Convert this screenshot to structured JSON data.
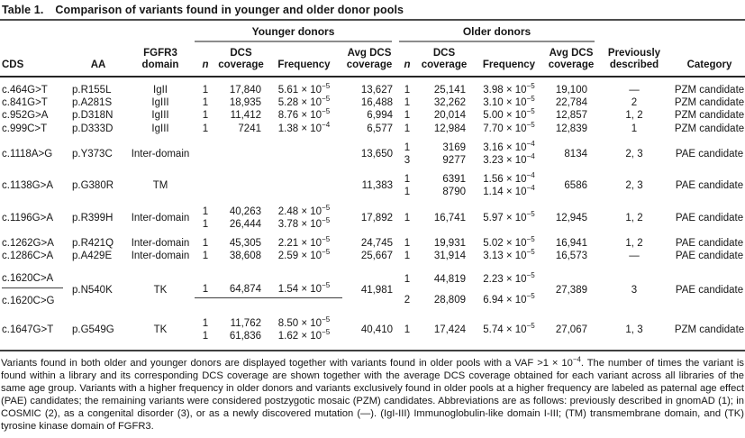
{
  "title": {
    "label": "Table 1.",
    "text": "Comparison of variants found in younger and older donor pools"
  },
  "headers": {
    "younger": "Younger donors",
    "older": "Older donors",
    "cds": "CDS",
    "aa": "AA",
    "domain": "FGFR3 domain",
    "n": "n",
    "dcs": "DCS coverage",
    "freq": "Frequency",
    "avg": "Avg DCS coverage",
    "prev": "Previously described",
    "cat": "Category"
  },
  "table": {
    "rows": [
      {
        "cds": [
          "c.464G>T"
        ],
        "aa": "p.R155L",
        "domain": "IgII",
        "y": {
          "lines": [
            [
              "1",
              "17,840",
              "5.61",
              "−5"
            ]
          ],
          "avg": "13,627"
        },
        "o": {
          "lines": [
            [
              "1",
              "25,141",
              "3.98",
              "−5"
            ]
          ],
          "avg": "19,100"
        },
        "prev": "—",
        "cat": "PZM candidate",
        "gap": false,
        "tall": false
      },
      {
        "cds": [
          "c.841G>T"
        ],
        "aa": "p.A281S",
        "domain": "IgIII",
        "y": {
          "lines": [
            [
              "1",
              "18,935",
              "5.28",
              "−5"
            ]
          ],
          "avg": "16,488"
        },
        "o": {
          "lines": [
            [
              "1",
              "32,262",
              "3.10",
              "−5"
            ]
          ],
          "avg": "22,784"
        },
        "prev": "2",
        "cat": "PZM candidate",
        "gap": false,
        "tall": false
      },
      {
        "cds": [
          "c.952G>A"
        ],
        "aa": "p.D318N",
        "domain": "IgIII",
        "y": {
          "lines": [
            [
              "1",
              "11,412",
              "8.76",
              "−5"
            ]
          ],
          "avg": "6,994"
        },
        "o": {
          "lines": [
            [
              "1",
              "20,014",
              "5.00",
              "−5"
            ]
          ],
          "avg": "12,857"
        },
        "prev": "1, 2",
        "cat": "PZM candidate",
        "gap": false,
        "tall": false
      },
      {
        "cds": [
          "c.999C>T"
        ],
        "aa": "p.D333D",
        "domain": "IgIII",
        "y": {
          "lines": [
            [
              "1",
              "7241",
              "1.38",
              "−4"
            ]
          ],
          "avg": "6,577"
        },
        "o": {
          "lines": [
            [
              "1",
              "12,984",
              "7.70",
              "−5"
            ]
          ],
          "avg": "12,839"
        },
        "prev": "1",
        "cat": "PZM candidate",
        "gap": false,
        "tall": false
      },
      {
        "cds": [
          "c.1118A>G"
        ],
        "aa": "p.Y373C",
        "domain": "Inter-domain",
        "y": {
          "lines": [],
          "avg": "13,650"
        },
        "o": {
          "lines": [
            [
              "1",
              "3169",
              "3.16",
              "−4"
            ],
            [
              "3",
              "9277",
              "3.23",
              "−4"
            ]
          ],
          "avg": "8134"
        },
        "prev": "2, 3",
        "cat": "PAE candidate",
        "gap": true,
        "tall": false
      },
      {
        "cds": [
          "c.1138G>A"
        ],
        "aa": "p.G380R",
        "domain": "TM",
        "y": {
          "lines": [],
          "avg": "11,383"
        },
        "o": {
          "lines": [
            [
              "1",
              "6391",
              "1.56",
              "−4"
            ],
            [
              "1",
              "8790",
              "1.14",
              "−4"
            ]
          ],
          "avg": "6586"
        },
        "prev": "2, 3",
        "cat": "PAE candidate",
        "gap": true,
        "tall": false
      },
      {
        "cds": [
          "c.1196G>A"
        ],
        "aa": "p.R399H",
        "domain": "Inter-domain",
        "y": {
          "lines": [
            [
              "1",
              "40,263",
              "2.48",
              "−5"
            ],
            [
              "1",
              "26,444",
              "3.78",
              "−5"
            ]
          ],
          "avg": "17,892"
        },
        "o": {
          "lines": [
            [
              "1",
              "16,741",
              "5.97",
              "−5"
            ]
          ],
          "avg": "12,945"
        },
        "prev": "1, 2",
        "cat": "PAE candidate",
        "gap": true,
        "tall": false
      },
      {
        "cds": [
          "c.1262G>A"
        ],
        "aa": "p.R421Q",
        "domain": "Inter-domain",
        "y": {
          "lines": [
            [
              "1",
              "45,305",
              "2.21",
              "−5"
            ]
          ],
          "avg": "24,745"
        },
        "o": {
          "lines": [
            [
              "1",
              "19,931",
              "5.02",
              "−5"
            ]
          ],
          "avg": "16,941"
        },
        "prev": "1, 2",
        "cat": "PAE candidate",
        "gap": true,
        "tall": false
      },
      {
        "cds": [
          "c.1286C>A"
        ],
        "aa": "p.A429E",
        "domain": "Inter-domain",
        "y": {
          "lines": [
            [
              "1",
              "38,608",
              "2.59",
              "−5"
            ]
          ],
          "avg": "25,667"
        },
        "o": {
          "lines": [
            [
              "1",
              "31,914",
              "3.13",
              "−5"
            ]
          ],
          "avg": "16,573"
        },
        "prev": "—",
        "cat": "PAE candidate",
        "gap": false,
        "tall": false
      },
      {
        "cds": [
          "c.1620C>A",
          "c.1620C>G"
        ],
        "cds_rule": true,
        "aa": "p.N540K",
        "domain": "TK",
        "y": {
          "lines": [
            [
              "1",
              "64,874",
              "1.54",
              "−5"
            ]
          ],
          "rule_first": true,
          "avg": "41,981"
        },
        "o": {
          "lines": [
            [
              "1",
              "44,819",
              "2.23",
              "−5"
            ],
            [
              "2",
              "28,809",
              "6.94",
              "−5"
            ]
          ],
          "avg": "27,389"
        },
        "prev": "3",
        "cat": "PAE candidate",
        "gap": true,
        "tall": true
      },
      {
        "cds": [
          "c.1647G>T"
        ],
        "aa": "p.G549G",
        "domain": "TK",
        "y": {
          "lines": [
            [
              "1",
              "11,762",
              "8.50",
              "−5"
            ],
            [
              "1",
              "61,836",
              "1.62",
              "−5"
            ]
          ],
          "avg": "40,410"
        },
        "o": {
          "lines": [
            [
              "1",
              "17,424",
              "5.74",
              "−5"
            ]
          ],
          "avg": "27,067"
        },
        "prev": "1, 3",
        "cat": "PZM candidate",
        "gap": true,
        "tall": false
      }
    ]
  },
  "footnote": {
    "part1": "Variants found in both older and younger donors are displayed together with variants found in older pools with a VAF >1 × 10",
    "sup": "−4",
    "part2": ". The number of times the variant is found within a library and its corresponding DCS coverage are shown together with the average DCS coverage obtained for each variant across all libraries of the same age group. Variants with a higher frequency in older donors and variants exclusively found in older pools at a higher frequency are labeled as paternal age effect (PAE) candidates; the remaining variants were considered postzygotic mosaic (PZM) candidates. Abbreviations are as follows: previously described in gnomAD (1); in COSMIC (2), as a congenital disorder (3), or as a newly discovered mutation (—). (IgI-III) Immunoglobulin-like domain I-III; (TM) transmembrane domain, and (TK) tyrosine kinase domain of FGFR3."
  },
  "colors": {
    "text": "#161616",
    "rule_dark": "#262626",
    "rule_medium": "#3f3f3f",
    "rule_gray": "#8c8c8c",
    "background": "#ffffff"
  }
}
